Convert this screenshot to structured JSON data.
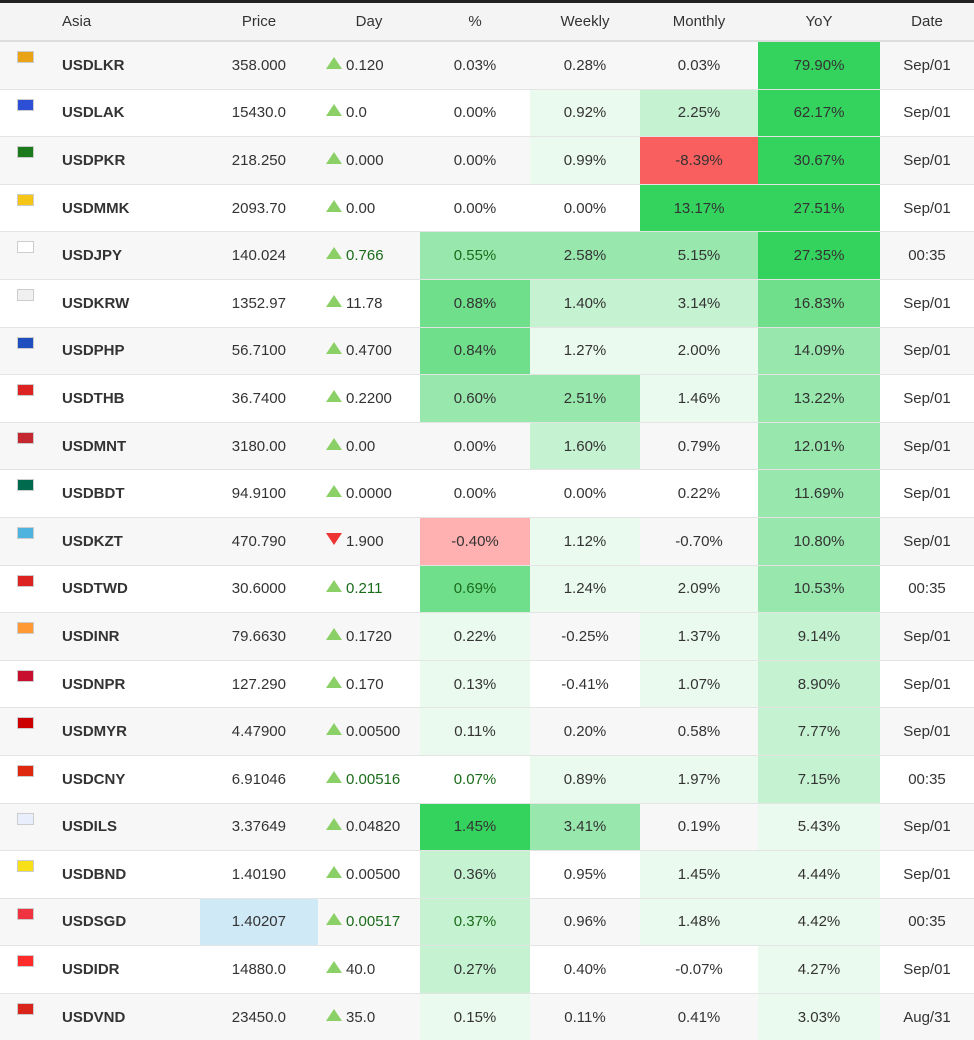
{
  "headers": [
    "Asia",
    "Price",
    "Day",
    "%",
    "Weekly",
    "Monthly",
    "YoY",
    "Date"
  ],
  "colors": {
    "l1": "#ebfaef",
    "l2": "#c5f2d1",
    "l3": "#98e8ae",
    "l4": "#6fdf8b",
    "l5": "#34d35e",
    "r1": "#ffb0b0",
    "r2": "#fa5f5f",
    "highlight": "#d0e9f7"
  },
  "rows": [
    {
      "flag": "#e8a317",
      "name": "USDLKR",
      "price": "358.000",
      "dir": "up",
      "day": "0.120",
      "pct": "0.03%",
      "weekly": "0.28%",
      "monthly": "0.03%",
      "yoy": "79.90%",
      "date": "Sep/01",
      "lv": [
        0,
        0,
        0,
        "l5"
      ]
    },
    {
      "flag": "#2c4fd6",
      "name": "USDLAK",
      "price": "15430.0",
      "dir": "up",
      "day": "0.0",
      "pct": "0.00%",
      "weekly": "0.92%",
      "monthly": "2.25%",
      "yoy": "62.17%",
      "date": "Sep/01",
      "lv": [
        0,
        "l1",
        "l2",
        "l5"
      ]
    },
    {
      "flag": "#1b7a1b",
      "name": "USDPKR",
      "price": "218.250",
      "dir": "up",
      "day": "0.000",
      "pct": "0.00%",
      "weekly": "0.99%",
      "monthly": "-8.39%",
      "yoy": "30.67%",
      "date": "Sep/01",
      "lv": [
        0,
        "l1",
        "r2",
        "l5"
      ]
    },
    {
      "flag": "#f5c518",
      "name": "USDMMK",
      "price": "2093.70",
      "dir": "up",
      "day": "0.00",
      "pct": "0.00%",
      "weekly": "0.00%",
      "monthly": "13.17%",
      "yoy": "27.51%",
      "date": "Sep/01",
      "lv": [
        0,
        0,
        "l5",
        "l5"
      ]
    },
    {
      "flag": "#ffffff",
      "name": "USDJPY",
      "price": "140.024",
      "dir": "up",
      "day": "0.766",
      "pct": "0.55%",
      "weekly": "2.58%",
      "monthly": "5.15%",
      "yoy": "27.35%",
      "date": "00:35",
      "lv": [
        "l3",
        "l3",
        "l3",
        "l5"
      ],
      "green": true
    },
    {
      "flag": "#f0f0f0",
      "name": "USDKRW",
      "price": "1352.97",
      "dir": "up",
      "day": "11.78",
      "pct": "0.88%",
      "weekly": "1.40%",
      "monthly": "3.14%",
      "yoy": "16.83%",
      "date": "Sep/01",
      "lv": [
        "l4",
        "l2",
        "l2",
        "l4"
      ]
    },
    {
      "flag": "#1f4fbf",
      "name": "USDPHP",
      "price": "56.7100",
      "dir": "up",
      "day": "0.4700",
      "pct": "0.84%",
      "weekly": "1.27%",
      "monthly": "2.00%",
      "yoy": "14.09%",
      "date": "Sep/01",
      "lv": [
        "l4",
        "l1",
        "l1",
        "l3"
      ]
    },
    {
      "flag": "#d22",
      "name": "USDTHB",
      "price": "36.7400",
      "dir": "up",
      "day": "0.2200",
      "pct": "0.60%",
      "weekly": "2.51%",
      "monthly": "1.46%",
      "yoy": "13.22%",
      "date": "Sep/01",
      "lv": [
        "l3",
        "l3",
        "l1",
        "l3"
      ]
    },
    {
      "flag": "#c4272f",
      "name": "USDMNT",
      "price": "3180.00",
      "dir": "up",
      "day": "0.00",
      "pct": "0.00%",
      "weekly": "1.60%",
      "monthly": "0.79%",
      "yoy": "12.01%",
      "date": "Sep/01",
      "lv": [
        0,
        "l2",
        0,
        "l3"
      ]
    },
    {
      "flag": "#006a4e",
      "name": "USDBDT",
      "price": "94.9100",
      "dir": "up",
      "day": "0.0000",
      "pct": "0.00%",
      "weekly": "0.00%",
      "monthly": "0.22%",
      "yoy": "11.69%",
      "date": "Sep/01",
      "lv": [
        0,
        0,
        0,
        "l3"
      ]
    },
    {
      "flag": "#4fb3e0",
      "name": "USDKZT",
      "price": "470.790",
      "dir": "down",
      "day": "1.900",
      "pct": "-0.40%",
      "weekly": "1.12%",
      "monthly": "-0.70%",
      "yoy": "10.80%",
      "date": "Sep/01",
      "lv": [
        "r1",
        "l1",
        0,
        "l3"
      ]
    },
    {
      "flag": "#d22",
      "name": "USDTWD",
      "price": "30.6000",
      "dir": "up",
      "day": "0.211",
      "pct": "0.69%",
      "weekly": "1.24%",
      "monthly": "2.09%",
      "yoy": "10.53%",
      "date": "00:35",
      "lv": [
        "l4",
        "l1",
        "l1",
        "l3"
      ],
      "green": true
    },
    {
      "flag": "#ff9933",
      "name": "USDINR",
      "price": "79.6630",
      "dir": "up",
      "day": "0.1720",
      "pct": "0.22%",
      "weekly": "-0.25%",
      "monthly": "1.37%",
      "yoy": "9.14%",
      "date": "Sep/01",
      "lv": [
        "l1",
        0,
        "l1",
        "l2"
      ]
    },
    {
      "flag": "#c8102e",
      "name": "USDNPR",
      "price": "127.290",
      "dir": "up",
      "day": "0.170",
      "pct": "0.13%",
      "weekly": "-0.41%",
      "monthly": "1.07%",
      "yoy": "8.90%",
      "date": "Sep/01",
      "lv": [
        "l1",
        0,
        "l1",
        "l2"
      ]
    },
    {
      "flag": "#cc0001",
      "name": "USDMYR",
      "price": "4.47900",
      "dir": "up",
      "day": "0.00500",
      "pct": "0.11%",
      "weekly": "0.20%",
      "monthly": "0.58%",
      "yoy": "7.77%",
      "date": "Sep/01",
      "lv": [
        "l1",
        0,
        0,
        "l2"
      ]
    },
    {
      "flag": "#de2910",
      "name": "USDCNY",
      "price": "6.91046",
      "dir": "up",
      "day": "0.00516",
      "pct": "0.07%",
      "weekly": "0.89%",
      "monthly": "1.97%",
      "yoy": "7.15%",
      "date": "00:35",
      "lv": [
        0,
        "l1",
        "l1",
        "l2"
      ],
      "green": true
    },
    {
      "flag": "#e8eefc",
      "name": "USDILS",
      "price": "3.37649",
      "dir": "up",
      "day": "0.04820",
      "pct": "1.45%",
      "weekly": "3.41%",
      "monthly": "0.19%",
      "yoy": "5.43%",
      "date": "Sep/01",
      "lv": [
        "l5",
        "l3",
        0,
        "l1"
      ]
    },
    {
      "flag": "#f7e017",
      "name": "USDBND",
      "price": "1.40190",
      "dir": "up",
      "day": "0.00500",
      "pct": "0.36%",
      "weekly": "0.95%",
      "monthly": "1.45%",
      "yoy": "4.44%",
      "date": "Sep/01",
      "lv": [
        "l2",
        0,
        "l1",
        "l1"
      ]
    },
    {
      "flag": "#ef3340",
      "name": "USDSGD",
      "price": "1.40207",
      "dir": "up",
      "day": "0.00517",
      "pct": "0.37%",
      "weekly": "0.96%",
      "monthly": "1.48%",
      "yoy": "4.42%",
      "date": "00:35",
      "lv": [
        "l2",
        0,
        "l1",
        "l1"
      ],
      "green": true,
      "hl": true
    },
    {
      "flag": "#ff2a2a",
      "name": "USDIDR",
      "price": "14880.0",
      "dir": "up",
      "day": "40.0",
      "pct": "0.27%",
      "weekly": "0.40%",
      "monthly": "-0.07%",
      "yoy": "4.27%",
      "date": "Sep/01",
      "lv": [
        "l2",
        0,
        0,
        "l1"
      ]
    },
    {
      "flag": "#da251d",
      "name": "USDVND",
      "price": "23450.0",
      "dir": "up",
      "day": "35.0",
      "pct": "0.15%",
      "weekly": "0.11%",
      "monthly": "0.41%",
      "yoy": "3.03%",
      "date": "Aug/31",
      "lv": [
        "l1",
        0,
        0,
        "l1"
      ]
    }
  ]
}
